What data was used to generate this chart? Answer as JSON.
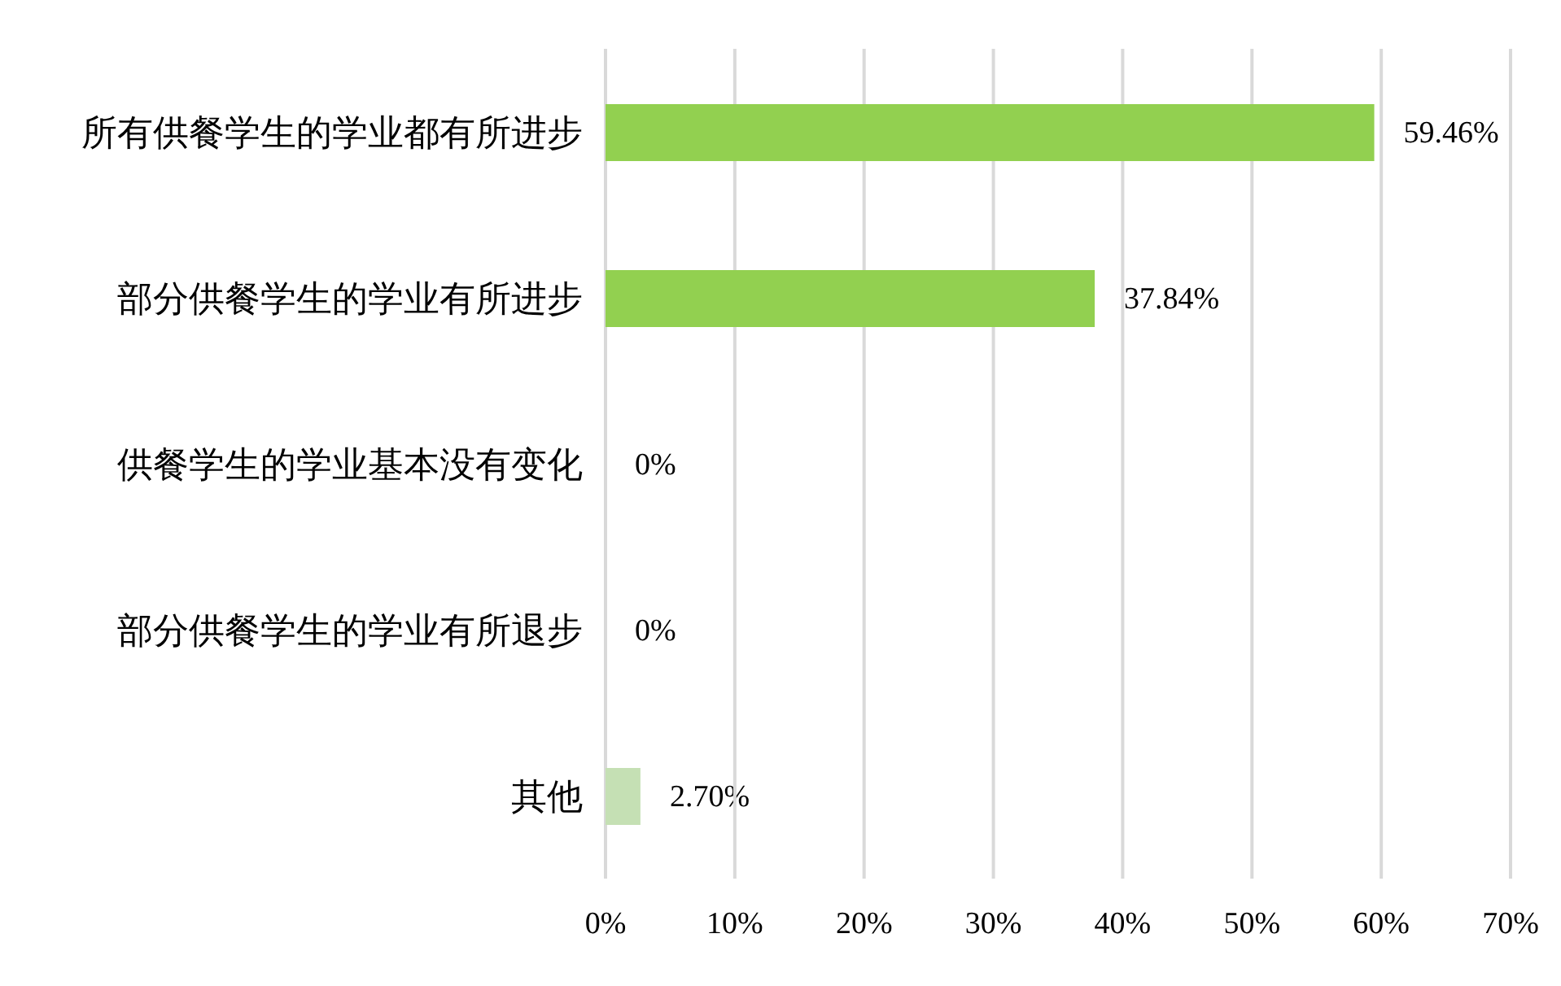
{
  "chart_data": {
    "type": "bar",
    "orientation": "horizontal",
    "categories": [
      "所有供餐学生的学业都有所进步",
      "部分供餐学生的学业有所进步",
      "供餐学生的学业基本没有变化",
      "部分供餐学生的学业有所退步",
      "其他"
    ],
    "values": [
      59.46,
      37.84,
      0,
      0,
      2.7
    ],
    "colors": [
      "#92d050",
      "#92d050",
      "#92d050",
      "#92d050",
      "#c5e0b4"
    ],
    "value_labels": [
      "59.46%",
      "37.84%",
      "0%",
      "0%",
      "2.70%"
    ],
    "xlim": [
      0,
      70
    ],
    "xticks": [
      {
        "value": 0,
        "label": "0%"
      },
      {
        "value": 10,
        "label": "10%"
      },
      {
        "value": 20,
        "label": "20%"
      },
      {
        "value": 30,
        "label": "30%"
      },
      {
        "value": 40,
        "label": "40%"
      },
      {
        "value": 50,
        "label": "50%"
      },
      {
        "value": 60,
        "label": "60%"
      },
      {
        "value": 70,
        "label": "70%"
      }
    ],
    "grid": "x",
    "legend": false
  }
}
